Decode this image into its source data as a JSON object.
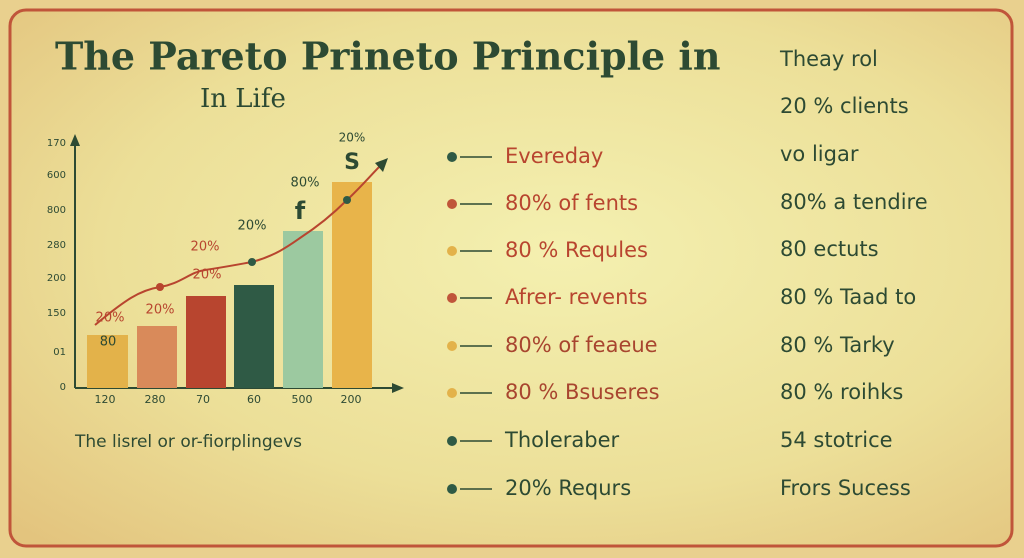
{
  "header": {
    "title": "The Pareto Prineto Principle in",
    "subtitle": "In Life"
  },
  "figure": {
    "y_labels": [
      "170",
      "600",
      "800",
      "280",
      "200",
      "150",
      "01",
      "0"
    ],
    "x_labels": [
      "120",
      "280",
      "70",
      "60",
      "500",
      "200"
    ],
    "bar_labels": [
      "80",
      "20%",
      "20%",
      "20%",
      "20%",
      "20%",
      "80%",
      "f",
      "20%",
      "S"
    ],
    "caption": "The lisrel or or-fiorplingevs"
  },
  "list": [
    "Evereday",
    "80% of fents",
    "80 % Requles",
    "Afrer- revents",
    "80% of feaeue",
    "80 % Bsuseres",
    "Tholeraber",
    "20% Requrs"
  ],
  "right_column": {
    "heading": "Theay rol",
    "items": [
      "20 % clients",
      "vo ligar",
      "80% a tendire",
      "80 ectuts",
      "80 % Taad  to",
      "80 % Tarky",
      "80 % roihks",
      "54 stotrice",
      "Frors Sucess"
    ]
  }
}
